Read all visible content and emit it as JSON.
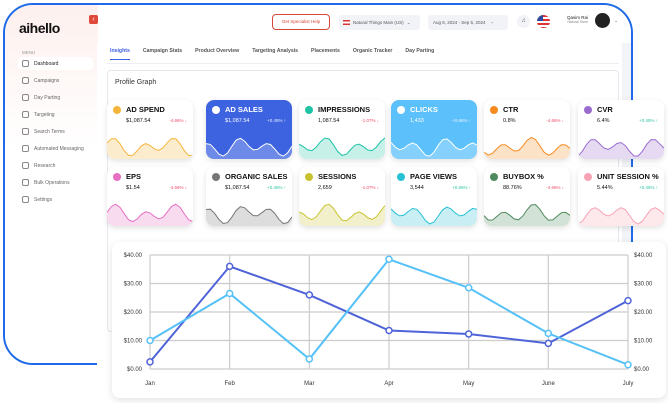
{
  "app": {
    "logo": "aihello"
  },
  "sidebar": {
    "menu_label": "MENU",
    "items": [
      {
        "label": "Dashboard",
        "icon": "dashboard-icon",
        "active": true
      },
      {
        "label": "Campaigns",
        "icon": "bar-chart-icon"
      },
      {
        "label": "Day Parting",
        "icon": "clock-icon"
      },
      {
        "label": "Targeting",
        "icon": "target-icon"
      },
      {
        "label": "Search Terms",
        "icon": "search-icon"
      },
      {
        "label": "Automated Messaging",
        "icon": "message-icon"
      },
      {
        "label": "Research",
        "icon": "document-icon"
      },
      {
        "label": "Bulk Operations",
        "icon": "layers-icon"
      },
      {
        "label": "Settings",
        "icon": "gear-icon"
      }
    ]
  },
  "header": {
    "help_button": "Get Specialist Help",
    "store": "Natural Things Main (US)",
    "date_range": "Aug 6, 2024 - Sep 5, 2024",
    "user_name": "Qasim Rai",
    "user_store": "Natural Store"
  },
  "tabs": [
    "Insights",
    "Campaign Stats",
    "Product Overview",
    "Targeting Analysis",
    "Placements",
    "Organic Tracker",
    "Day Parting"
  ],
  "section_title": "Profile Graph",
  "colors": {
    "accent": "#3a5fe0",
    "up": "#2bc4a0",
    "down": "#ee4c6a"
  },
  "metrics": [
    {
      "title": "AD SPEND",
      "value": "$1,087.54",
      "change": "-4.66%",
      "dir": "down",
      "color": "#f5b53b"
    },
    {
      "title": "AD SALES",
      "value": "$1,087.54",
      "change": "+0.45%",
      "dir": "up",
      "color": "#3d63e0",
      "filled": true
    },
    {
      "title": "IMPRESSIONS",
      "value": "1,087.54",
      "change": "-1.07%",
      "dir": "down",
      "color": "#1fc3a6"
    },
    {
      "title": "CLICKS",
      "value": "1,433",
      "change": "+0.66%",
      "dir": "up",
      "color": "#5cc0fb",
      "filled": true
    },
    {
      "title": "CTR",
      "value": "0.8%",
      "change": "-4.66%",
      "dir": "down",
      "color": "#f58b1f"
    },
    {
      "title": "CVR",
      "value": "6.4%",
      "change": "+0.45%",
      "dir": "up",
      "color": "#9a6cd0"
    },
    {
      "title": "EPS",
      "value": "$1.54",
      "change": "-4.66%",
      "dir": "down",
      "color": "#e66fc2"
    },
    {
      "title": "ORGANIC SALES",
      "value": "$1,087.54",
      "change": "+0.45%",
      "dir": "up",
      "color": "#777777"
    },
    {
      "title": "SESSIONS",
      "value": "2,659",
      "change": "-1.07%",
      "dir": "down",
      "color": "#c9c230"
    },
    {
      "title": "PAGE VIEWS",
      "value": "3,544",
      "change": "+0.66%",
      "dir": "up",
      "color": "#27c0d4"
    },
    {
      "title": "BUYBOX %",
      "value": "88.76%",
      "change": "-4.66%",
      "dir": "down",
      "color": "#4f8a5f"
    },
    {
      "title": "UNIT SESSION %",
      "value": "5.44%",
      "change": "+0.45%",
      "dir": "up",
      "color": "#f7a3b5"
    }
  ],
  "chart_data": {
    "type": "line",
    "categories": [
      "Jan",
      "Feb",
      "Mar",
      "Apr",
      "May",
      "June",
      "July"
    ],
    "ylim": [
      0,
      40
    ],
    "yticks": [
      "$0.00",
      "$10.00",
      "$20.00",
      "$30.00",
      "$40.00"
    ],
    "grid": true,
    "dual_axis": true,
    "series": [
      {
        "values": [
          2.5,
          36,
          26,
          13.5,
          12.3,
          9,
          24
        ],
        "color": "#4f63d8"
      },
      {
        "values": [
          10,
          26.5,
          3.5,
          38.5,
          28.5,
          12.5,
          1.5
        ],
        "color": "#55c1f7"
      }
    ]
  }
}
